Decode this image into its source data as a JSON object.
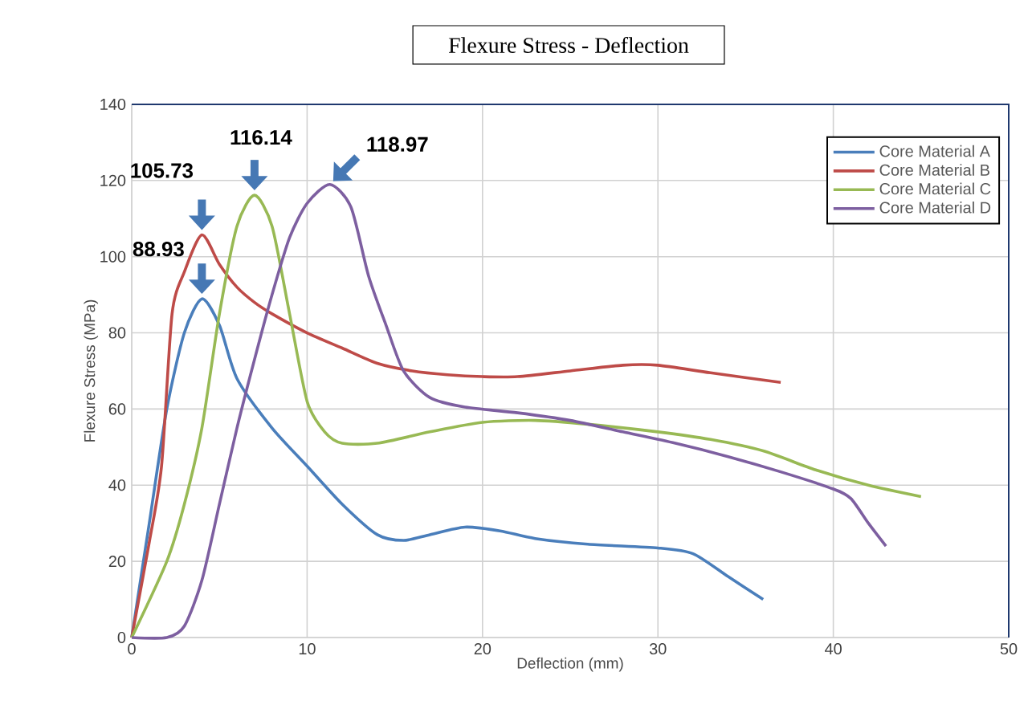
{
  "chart_data": {
    "type": "line",
    "title": "Flexure Stress - Deflection",
    "xlabel": "Deflection (mm)",
    "ylabel": "Flexure Stress (MPa)",
    "xlim": [
      0,
      50
    ],
    "xticks": [
      0,
      10,
      20,
      30,
      40,
      50
    ],
    "ylim": [
      0,
      140
    ],
    "yticks": [
      0,
      20,
      40,
      60,
      80,
      100,
      120,
      140
    ],
    "grid": true,
    "legend": "top right",
    "marker": "none",
    "line_style": "solid",
    "annotations": [
      {
        "text": "88.93",
        "x": 4,
        "y": 88.93
      },
      {
        "text": "105.73",
        "x": 4,
        "y": 105.73
      },
      {
        "text": "116.14",
        "x": 7,
        "y": 116.14
      },
      {
        "text": "118.97",
        "x": 11.3,
        "y": 118.97
      }
    ],
    "series": [
      {
        "name": "Core Material A",
        "color": "#4a7ebb",
        "x": [
          0,
          1,
          2,
          3,
          4,
          5,
          6,
          8,
          10,
          12,
          14,
          15.5,
          17,
          19,
          21,
          23,
          26,
          30,
          32,
          34,
          36
        ],
        "values": [
          0,
          30,
          60,
          80,
          88.93,
          82,
          68,
          55,
          45,
          35,
          27,
          25.5,
          27,
          29,
          28,
          26,
          24.5,
          23.5,
          22,
          16,
          10
        ]
      },
      {
        "name": "Core Material B",
        "color": "#be4b48",
        "x": [
          0,
          1,
          1.7,
          2.3,
          3,
          4,
          5,
          6,
          7,
          8,
          10,
          12,
          14,
          16,
          18,
          20,
          22,
          25,
          28,
          30,
          33,
          37
        ],
        "values": [
          0,
          25,
          45,
          85,
          96,
          105.73,
          98,
          92,
          88,
          85,
          80,
          76,
          72,
          70,
          69,
          68.5,
          68.5,
          70,
          71.5,
          71.5,
          69.5,
          67
        ]
      },
      {
        "name": "Core Material C",
        "color": "#98b954",
        "x": [
          0,
          2,
          3,
          4,
          5,
          6,
          7,
          8,
          9,
          10,
          11,
          12,
          14,
          17,
          20,
          23,
          26,
          30,
          33,
          36,
          39,
          42,
          45
        ],
        "values": [
          0,
          20,
          35,
          55,
          85,
          108,
          116.14,
          108,
          85,
          62,
          54,
          51,
          51,
          54,
          56.5,
          57,
          56,
          54,
          52,
          49,
          44,
          40,
          37
        ]
      },
      {
        "name": "Core Material D",
        "color": "#7d5fa0",
        "x": [
          0,
          2,
          3,
          4,
          5,
          6,
          7,
          8,
          9,
          10,
          11.3,
          12.5,
          13.5,
          14.5,
          15.5,
          17,
          19,
          22,
          25,
          28,
          31,
          34,
          37,
          40,
          41,
          42,
          43
        ],
        "values": [
          0,
          0,
          3,
          15,
          35,
          55,
          73,
          90,
          105,
          114,
          118.97,
          113,
          95,
          82,
          70,
          63,
          60.5,
          59,
          57,
          54,
          51,
          47.5,
          43.5,
          39,
          36.5,
          30,
          24
        ]
      }
    ]
  }
}
